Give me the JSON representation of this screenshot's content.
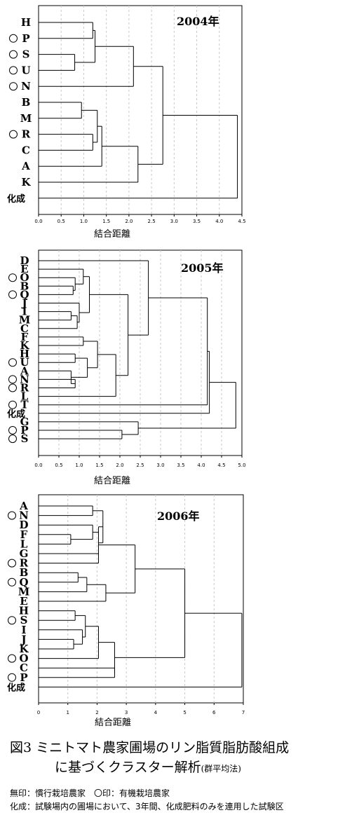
{
  "chart_data": [
    {
      "type": "dendrogram",
      "title": "2004年",
      "xlabel": "結合距離",
      "xlim": [
        0,
        4.5
      ],
      "xticks": [
        "0.0",
        "0.5",
        "1.0",
        "1.5",
        "2.0",
        "2.5",
        "3.0",
        "3.5",
        "4.0",
        "4.5"
      ],
      "leaves": [
        {
          "label": "H",
          "organic": false
        },
        {
          "label": "P",
          "organic": true
        },
        {
          "label": "S",
          "organic": true
        },
        {
          "label": "U",
          "organic": true
        },
        {
          "label": "N",
          "organic": true
        },
        {
          "label": "B",
          "organic": false
        },
        {
          "label": "M",
          "organic": false
        },
        {
          "label": "R",
          "organic": true
        },
        {
          "label": "C",
          "organic": false
        },
        {
          "label": "A",
          "organic": false
        },
        {
          "label": "K",
          "organic": false
        },
        {
          "label": "化成",
          "organic": false
        }
      ],
      "merges": [
        {
          "a": 0,
          "b": 1,
          "h": 1.2
        },
        {
          "a": 2,
          "b": 3,
          "h": 0.8
        },
        {
          "a": 12,
          "b": 13,
          "h": 1.25
        },
        {
          "a": 14,
          "b": 4,
          "h": 2.1
        },
        {
          "a": 5,
          "b": 6,
          "h": 0.95
        },
        {
          "a": 7,
          "b": 8,
          "h": 1.2
        },
        {
          "a": 17,
          "b": 16,
          "h": 1.3
        },
        {
          "a": 18,
          "b": 9,
          "h": 1.4
        },
        {
          "a": 19,
          "b": 10,
          "h": 2.2
        },
        {
          "a": 15,
          "b": 20,
          "h": 2.75
        },
        {
          "a": 21,
          "b": 11,
          "h": 4.4
        }
      ]
    },
    {
      "type": "dendrogram",
      "title": "2005年",
      "xlabel": "結合距離",
      "xlim": [
        0,
        5.0
      ],
      "xticks": [
        "0.0",
        "0.5",
        "1.0",
        "1.5",
        "2.0",
        "2.5",
        "3.0",
        "3.5",
        "4.0",
        "4.5",
        "5.0"
      ],
      "leaves": [
        {
          "label": "D",
          "organic": false
        },
        {
          "label": "E",
          "organic": false
        },
        {
          "label": "O",
          "organic": true
        },
        {
          "label": "B",
          "organic": false
        },
        {
          "label": "Q",
          "organic": true
        },
        {
          "label": "J",
          "organic": false
        },
        {
          "label": "I",
          "organic": false
        },
        {
          "label": "M",
          "organic": false
        },
        {
          "label": "C",
          "organic": false
        },
        {
          "label": "F",
          "organic": false
        },
        {
          "label": "K",
          "organic": false
        },
        {
          "label": "H",
          "organic": false
        },
        {
          "label": "U",
          "organic": true
        },
        {
          "label": "A",
          "organic": false
        },
        {
          "label": "N",
          "organic": true
        },
        {
          "label": "R",
          "organic": true
        },
        {
          "label": "L",
          "organic": false
        },
        {
          "label": "T",
          "organic": true
        },
        {
          "label": "化成",
          "organic": false
        },
        {
          "label": "G",
          "organic": false
        },
        {
          "label": "P",
          "organic": true
        },
        {
          "label": "S",
          "organic": true
        }
      ],
      "merges": [
        {
          "a": 3,
          "b": 4,
          "h": 0.85
        },
        {
          "a": 2,
          "b": 22,
          "h": 0.9
        },
        {
          "a": 1,
          "b": 23,
          "h": 1.1
        },
        {
          "a": 6,
          "b": 7,
          "h": 0.8
        },
        {
          "a": 25,
          "b": 8,
          "h": 0.95
        },
        {
          "a": 5,
          "b": 26,
          "h": 1.0
        },
        {
          "a": 24,
          "b": 27,
          "h": 1.25
        },
        {
          "a": 9,
          "b": 10,
          "h": 1.1
        },
        {
          "a": 14,
          "b": 15,
          "h": 0.9
        },
        {
          "a": 13,
          "b": 30,
          "h": 0.8
        },
        {
          "a": 11,
          "b": 12,
          "h": 0.9
        },
        {
          "a": 32,
          "b": 31,
          "h": 1.2
        },
        {
          "a": 29,
          "b": 33,
          "h": 1.45
        },
        {
          "a": 34,
          "b": 16,
          "h": 1.9
        },
        {
          "a": 28,
          "b": 35,
          "h": 2.2
        },
        {
          "a": 0,
          "b": 36,
          "h": 2.7
        },
        {
          "a": 37,
          "b": 17,
          "h": 4.15
        },
        {
          "a": 20,
          "b": 21,
          "h": 2.05
        },
        {
          "a": 19,
          "b": 39,
          "h": 2.45
        },
        {
          "a": 38,
          "b": 18,
          "h": 4.2
        },
        {
          "a": 41,
          "b": 40,
          "h": 4.85
        }
      ]
    },
    {
      "type": "dendrogram",
      "title": "2006年",
      "xlabel": "結合距離",
      "xlim": [
        0,
        7
      ],
      "xticks": [
        "0",
        "1",
        "2",
        "3",
        "4",
        "5",
        "6",
        "7"
      ],
      "leaves": [
        {
          "label": "A",
          "organic": false
        },
        {
          "label": "N",
          "organic": true
        },
        {
          "label": "D",
          "organic": false
        },
        {
          "label": "F",
          "organic": false
        },
        {
          "label": "L",
          "organic": false
        },
        {
          "label": "G",
          "organic": false
        },
        {
          "label": "R",
          "organic": true
        },
        {
          "label": "B",
          "organic": false
        },
        {
          "label": "Q",
          "organic": true
        },
        {
          "label": "M",
          "organic": false
        },
        {
          "label": "E",
          "organic": false
        },
        {
          "label": "H",
          "organic": false
        },
        {
          "label": "S",
          "organic": true
        },
        {
          "label": "I",
          "organic": false
        },
        {
          "label": "J",
          "organic": false
        },
        {
          "label": "K",
          "organic": false
        },
        {
          "label": "O",
          "organic": true
        },
        {
          "label": "C",
          "organic": false
        },
        {
          "label": "P",
          "organic": true
        },
        {
          "label": "化成",
          "organic": false
        }
      ],
      "merges": [
        {
          "a": 0,
          "b": 1,
          "h": 1.85
        },
        {
          "a": 3,
          "b": 4,
          "h": 1.1
        },
        {
          "a": 2,
          "b": 21,
          "h": 1.85
        },
        {
          "a": 22,
          "b": 5,
          "h": 2.05
        },
        {
          "a": 20,
          "b": 23,
          "h": 2.2
        },
        {
          "a": 24,
          "b": 6,
          "h": 2.05
        },
        {
          "a": 7,
          "b": 8,
          "h": 1.35
        },
        {
          "a": 26,
          "b": 9,
          "h": 1.65
        },
        {
          "a": 27,
          "b": 10,
          "h": 2.3
        },
        {
          "a": 25,
          "b": 28,
          "h": 3.3
        },
        {
          "a": 11,
          "b": 12,
          "h": 1.25
        },
        {
          "a": 14,
          "b": 15,
          "h": 1.2
        },
        {
          "a": 13,
          "b": 31,
          "h": 1.5
        },
        {
          "a": 30,
          "b": 32,
          "h": 1.6
        },
        {
          "a": 33,
          "b": 16,
          "h": 2.05
        },
        {
          "a": 17,
          "b": 18,
          "h": 2.6
        },
        {
          "a": 34,
          "b": 35,
          "h": 2.6
        },
        {
          "a": 29,
          "b": 36,
          "h": 5.0
        },
        {
          "a": 37,
          "b": 19,
          "h": 6.95
        }
      ]
    }
  ],
  "caption": {
    "figure_no": "図3",
    "line1": "ミニトマト農家圃場のリン脂質脂肪酸組成",
    "line2": "に基づくクラスター解析",
    "method": "(群平均法)"
  },
  "legend": "無印：慣行栽培農家　〇印：有機栽培農家",
  "note": "化成：試験場内の圃場において、3年間、化成肥料のみを連用した試験区"
}
